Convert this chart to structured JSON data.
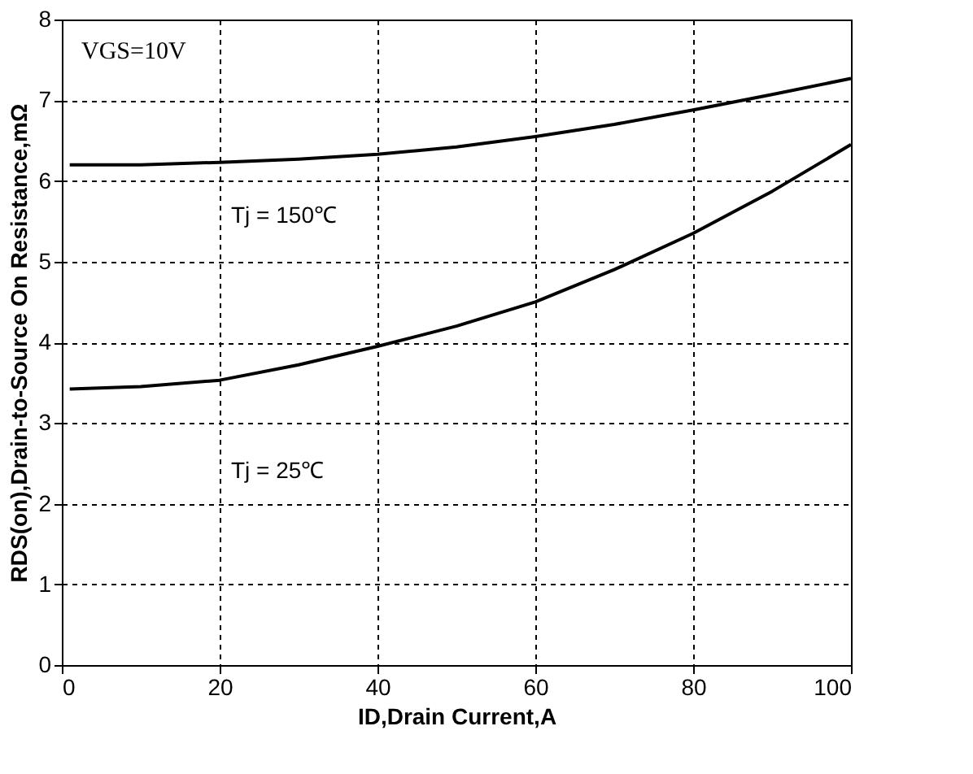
{
  "chart_data": {
    "type": "line",
    "xlabel": "ID,Drain Current,A",
    "ylabel": "RDS(on),Drain-to-Source On Resistance,mΩ",
    "xlim": [
      0,
      100
    ],
    "ylim": [
      0,
      8
    ],
    "xticks": [
      0,
      20,
      40,
      60,
      80,
      100
    ],
    "yticks": [
      0,
      1,
      2,
      3,
      4,
      5,
      6,
      7,
      8
    ],
    "grid": true,
    "series": [
      {
        "color": "#000000",
        "x": [
          1,
          10,
          20,
          30,
          40,
          50,
          60,
          70,
          80,
          90,
          100
        ],
        "values": [
          6.2,
          6.2,
          6.23,
          6.27,
          6.33,
          6.42,
          6.55,
          6.7,
          6.88,
          7.07,
          7.27
        ]
      },
      {
        "color": "#000000",
        "x": [
          1,
          10,
          20,
          30,
          40,
          50,
          60,
          70,
          80,
          90,
          100
        ],
        "values": [
          3.42,
          3.45,
          3.53,
          3.72,
          3.95,
          4.2,
          4.5,
          4.9,
          5.35,
          5.87,
          6.45
        ]
      }
    ],
    "annotations": [
      "VGS=10V",
      "Tj = 150℃",
      "Tj = 25℃"
    ]
  }
}
